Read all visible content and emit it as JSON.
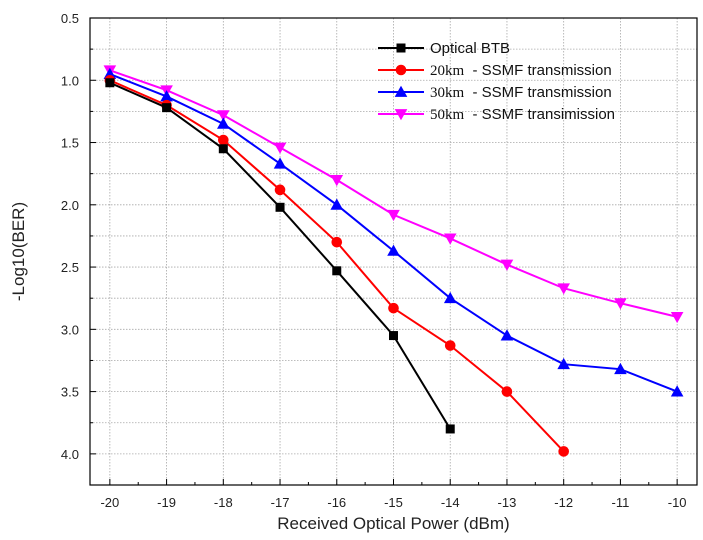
{
  "chart_data": {
    "type": "line",
    "xlabel": "Received Optical Power (dBm)",
    "ylabel": "-Log10(BER)",
    "xlim": [
      -20.35,
      -9.65
    ],
    "ylim": [
      0.5,
      4.25
    ],
    "y_inverted": true,
    "xticks": [
      -20,
      -19,
      -18,
      -17,
      -16,
      -15,
      -14,
      -13,
      -12,
      -11,
      -10
    ],
    "xtick_labels": [
      "-20",
      "-19",
      "-18",
      "-17",
      "-16",
      "-15",
      "-14",
      "-13",
      "-12",
      "-11",
      "-10"
    ],
    "yticks": [
      0.5,
      1.0,
      1.5,
      2.0,
      2.5,
      3.0,
      3.5,
      4.0
    ],
    "ytick_labels": [
      "0.5",
      "1.0",
      "1.5",
      "2.0",
      "2.5",
      "3.0",
      "3.5",
      "4.0"
    ],
    "grid": true,
    "legend_position": "top-right",
    "series": [
      {
        "name": "Optical BTB",
        "legend_km": "",
        "legend_rest": "Optical BTB",
        "color": "#000000",
        "marker": "square",
        "x": [
          -20,
          -19,
          -18,
          -17,
          -16,
          -15,
          -14
        ],
        "y": [
          1.02,
          1.22,
          1.55,
          2.02,
          2.53,
          3.05,
          3.8
        ]
      },
      {
        "name": "20km  - SSMF transmission",
        "legend_km": "20km",
        "legend_rest": "  - SSMF transmission",
        "color": "#ff0000",
        "marker": "circle",
        "x": [
          -20,
          -19,
          -18,
          -17,
          -16,
          -15,
          -14,
          -13,
          -12
        ],
        "y": [
          1.0,
          1.2,
          1.48,
          1.88,
          2.3,
          2.83,
          3.13,
          3.5,
          3.98
        ]
      },
      {
        "name": "30km  - SSMF transmission",
        "legend_km": "30km",
        "legend_rest": "  - SSMF transmission",
        "color": "#0000ff",
        "marker": "triangle-up",
        "x": [
          -20,
          -19,
          -18,
          -17,
          -16,
          -15,
          -14,
          -13,
          -12,
          -11,
          -10
        ],
        "y": [
          0.95,
          1.13,
          1.35,
          1.67,
          2.0,
          2.37,
          2.75,
          3.05,
          3.28,
          3.32,
          3.5
        ]
      },
      {
        "name": "50km  - SSMF transimission",
        "legend_km": "50km",
        "legend_rest": "  - SSMF transimission",
        "color": "#ff00ff",
        "marker": "triangle-down",
        "x": [
          -20,
          -19,
          -18,
          -17,
          -16,
          -15,
          -14,
          -13,
          -12,
          -11,
          -10
        ],
        "y": [
          0.92,
          1.08,
          1.28,
          1.54,
          1.8,
          2.08,
          2.27,
          2.48,
          2.67,
          2.79,
          2.9
        ]
      }
    ]
  }
}
